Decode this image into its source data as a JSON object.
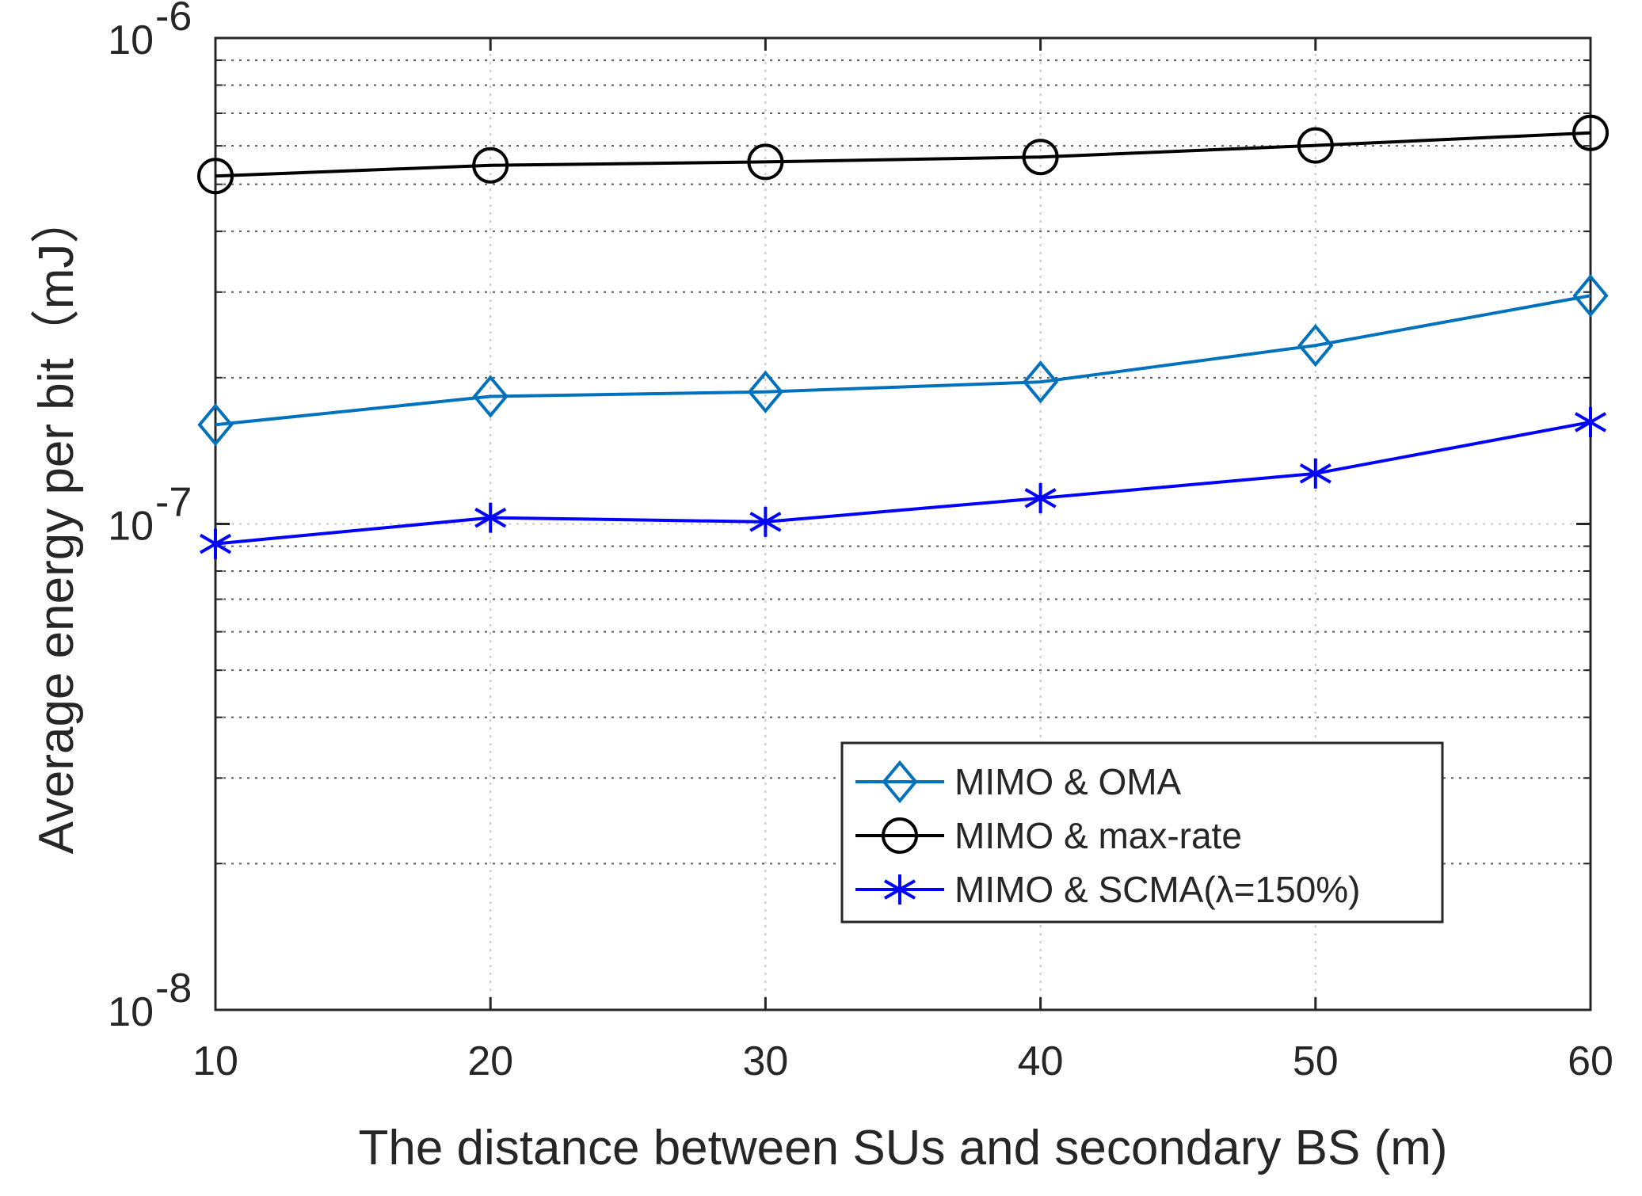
{
  "chart_data": {
    "type": "line",
    "title": "",
    "xlabel": "The distance between SUs and secondary BS (m)",
    "ylabel": "Average energy per bit（mJ）",
    "yscale": "log",
    "xlim": [
      10,
      60
    ],
    "ylim": [
      1e-08,
      1e-06
    ],
    "grid": true,
    "legend_position": "lower-right",
    "x": [
      10,
      20,
      30,
      40,
      50,
      60
    ],
    "x_ticks": [
      10,
      20,
      30,
      40,
      50,
      60
    ],
    "x_tick_labels": [
      "10",
      "20",
      "30",
      "40",
      "50",
      "60"
    ],
    "y_ticks": [
      {
        "value": 1e-08,
        "base": "10",
        "exp": "-8"
      },
      {
        "value": 1e-07,
        "base": "10",
        "exp": "-7"
      },
      {
        "value": 1e-06,
        "base": "10",
        "exp": "-6"
      }
    ],
    "series": [
      {
        "name": "MIMO & OMA",
        "color": "#0072BD",
        "marker": "diamond",
        "values": [
          1.6e-07,
          1.83e-07,
          1.87e-07,
          1.96e-07,
          2.33e-07,
          2.95e-07
        ]
      },
      {
        "name": "MIMO & max-rate",
        "color": "#000000",
        "marker": "circle",
        "values": [
          5.2e-07,
          5.47e-07,
          5.56e-07,
          5.69e-07,
          6.01e-07,
          6.38e-07
        ]
      },
      {
        "name": "MIMO & SCMA(λ=150%)",
        "color": "#0000FF",
        "marker": "asterisk",
        "values": [
          9.1e-08,
          1.03e-07,
          1.01e-07,
          1.13e-07,
          1.27e-07,
          1.62e-07
        ]
      }
    ]
  }
}
